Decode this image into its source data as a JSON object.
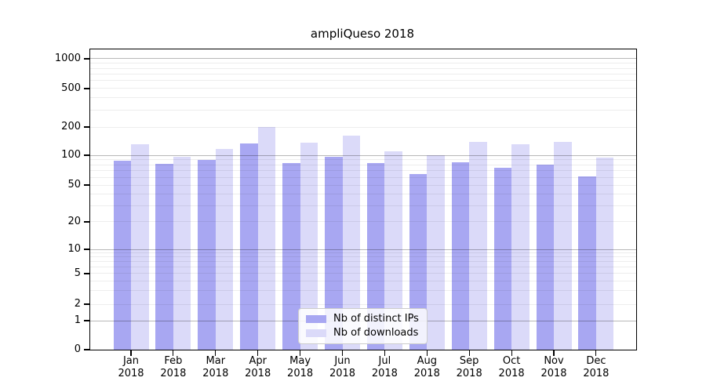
{
  "chart_data": {
    "type": "bar",
    "title": "ampliQueso 2018",
    "xlabel": "",
    "ylabel": "",
    "yscale": "symlog",
    "grid": true,
    "legend_position": "lower center",
    "ylim": [
      0,
      1200
    ],
    "yticks": [
      0,
      1,
      2,
      5,
      10,
      20,
      50,
      100,
      200,
      500,
      1000
    ],
    "categories": [
      "Jan 2018",
      "Feb 2018",
      "Mar 2018",
      "Apr 2018",
      "May 2018",
      "Jun 2018",
      "Jul 2018",
      "Aug 2018",
      "Sep 2018",
      "Oct 2018",
      "Nov 2018",
      "Dec 2018"
    ],
    "series": [
      {
        "name": "Nb of distinct IPs",
        "color": "#a8a7f2",
        "values": [
          88,
          82,
          90,
          134,
          84,
          97,
          83,
          64,
          85,
          75,
          80,
          61
        ]
      },
      {
        "name": "Nb of downloads",
        "color": "#dbdaf9",
        "values": [
          130,
          96,
          117,
          200,
          135,
          162,
          110,
          100,
          140,
          130,
          140,
          94
        ]
      }
    ]
  }
}
